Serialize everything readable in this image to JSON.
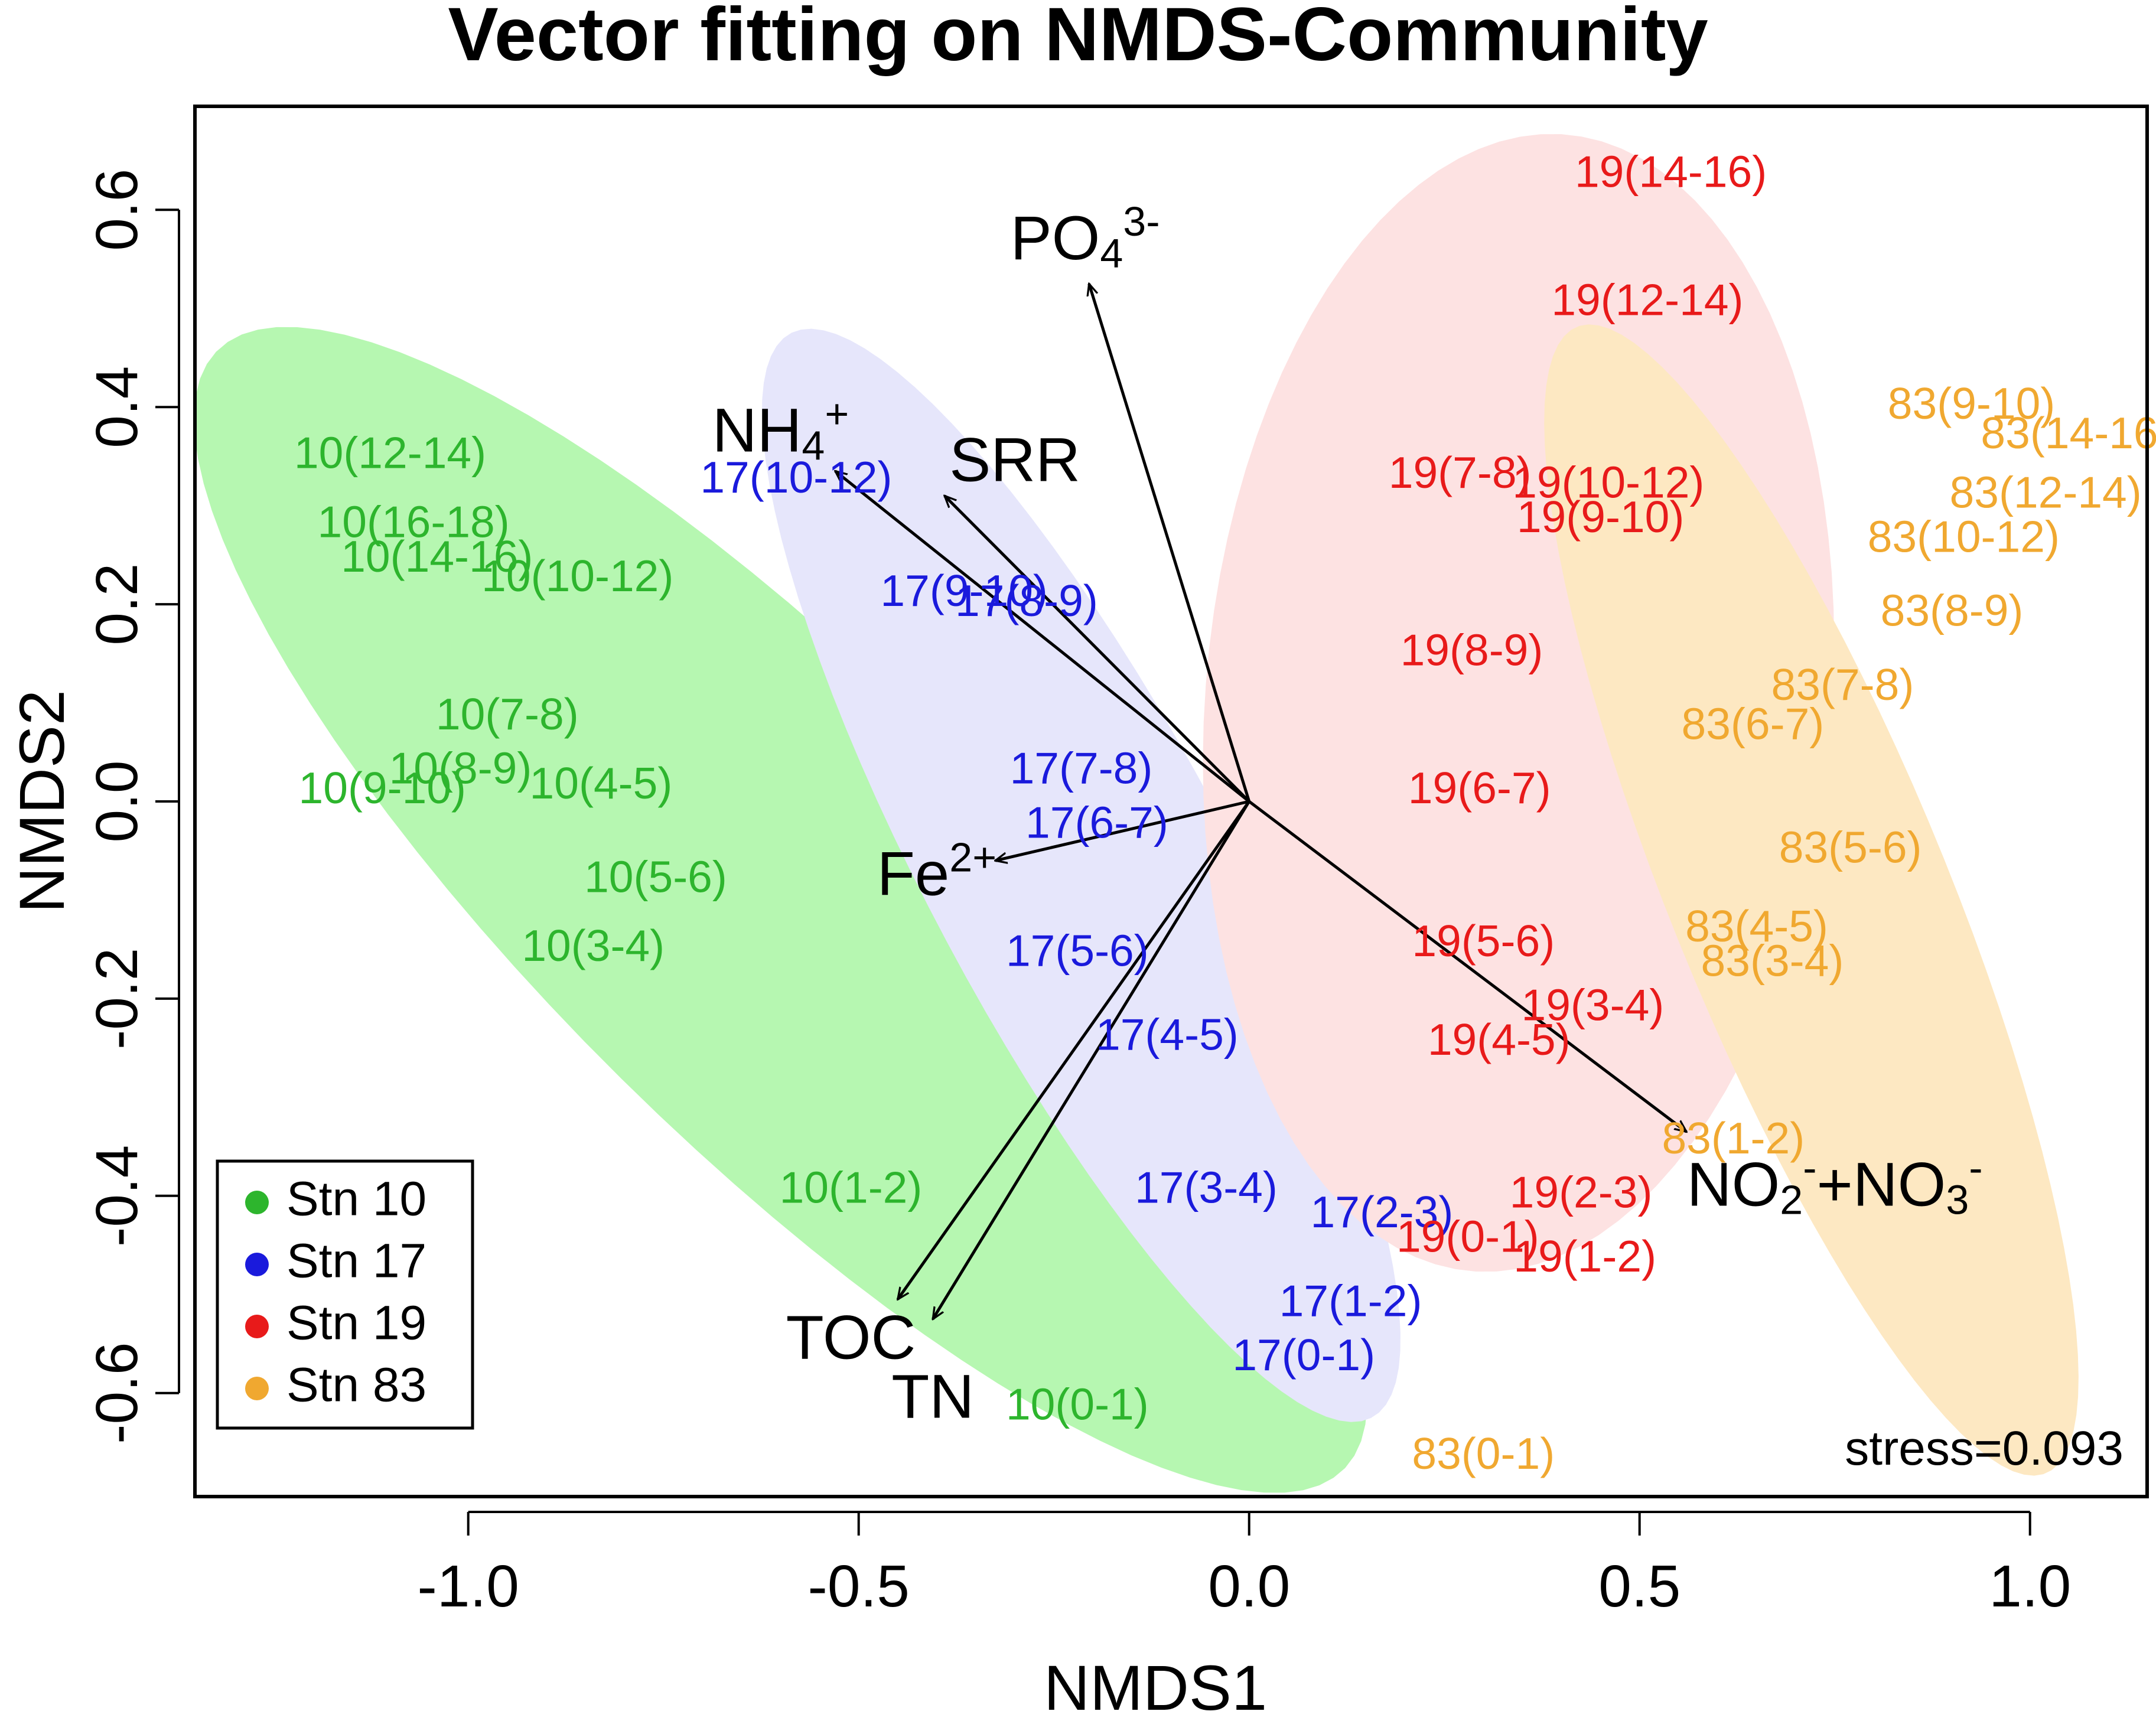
{
  "chart_data": {
    "type": "scatter",
    "title": "Vector fitting on NMDS-Community",
    "xlabel": "NMDS1",
    "ylabel": "NMDS2",
    "xlim": [
      -1.35,
      1.15
    ],
    "ylim": [
      -0.705,
      0.705
    ],
    "xticks": [
      -1.0,
      -0.5,
      0.0,
      0.5,
      1.0
    ],
    "xtick_labels": [
      "-1.0",
      "-0.5",
      "0.0",
      "0.5",
      "1.0"
    ],
    "yticks": [
      -0.6,
      -0.4,
      -0.2,
      0.0,
      0.2,
      0.4,
      0.6
    ],
    "ytick_labels": [
      "-0.6",
      "-0.4",
      "-0.2",
      "0.0",
      "0.2",
      "0.4",
      "0.6"
    ],
    "annotation": "stress=0.093",
    "legend_position": "bottom-left",
    "groups": [
      {
        "name": "Stn 10",
        "color": "#2db52d",
        "fill": "#b6f7b1",
        "ellipse": {
          "cx": -0.6,
          "cy": -0.11,
          "rx": 0.92,
          "ry": 0.26,
          "angle_deg": 143
        },
        "points": [
          {
            "label": "10(12-14)",
            "x": -1.1,
            "y": 0.35
          },
          {
            "label": "10(16-18)",
            "x": -1.07,
            "y": 0.28
          },
          {
            "label": "10(14-16)",
            "x": -1.04,
            "y": 0.245
          },
          {
            "label": "10(10-12)",
            "x": -0.86,
            "y": 0.225
          },
          {
            "label": "10(7-8)",
            "x": -0.95,
            "y": 0.085
          },
          {
            "label": "10(8-9)",
            "x": -1.01,
            "y": 0.03
          },
          {
            "label": "10(9-10)",
            "x": -1.11,
            "y": 0.01
          },
          {
            "label": "10(4-5)",
            "x": -0.83,
            "y": 0.015
          },
          {
            "label": "10(5-6)",
            "x": -0.76,
            "y": -0.08
          },
          {
            "label": "10(3-4)",
            "x": -0.84,
            "y": -0.15
          },
          {
            "label": "10(1-2)",
            "x": -0.51,
            "y": -0.395
          },
          {
            "label": "10(0-1)",
            "x": -0.22,
            "y": -0.615
          }
        ]
      },
      {
        "name": "Stn 17",
        "color": "#1a1adc",
        "fill": "#e6e6fb",
        "ellipse": {
          "cx": -0.215,
          "cy": -0.075,
          "rx": 0.665,
          "ry": 0.18,
          "angle_deg": 125
        },
        "points": [
          {
            "label": "17(10-12)",
            "x": -0.58,
            "y": 0.325
          },
          {
            "label": "17(9-10)",
            "x": -0.365,
            "y": 0.21
          },
          {
            "label": "17(8-9)",
            "x": -0.285,
            "y": 0.2
          },
          {
            "label": "17(7-8)",
            "x": -0.215,
            "y": 0.03
          },
          {
            "label": "17(6-7)",
            "x": -0.195,
            "y": -0.025
          },
          {
            "label": "17(5-6)",
            "x": -0.22,
            "y": -0.155
          },
          {
            "label": "17(4-5)",
            "x": -0.105,
            "y": -0.24
          },
          {
            "label": "17(3-4)",
            "x": -0.055,
            "y": -0.395
          },
          {
            "label": "17(2-3)",
            "x": 0.17,
            "y": -0.42
          },
          {
            "label": "17(1-2)",
            "x": 0.13,
            "y": -0.51
          },
          {
            "label": "17(0-1)",
            "x": 0.07,
            "y": -0.565
          }
        ]
      },
      {
        "name": "Stn 19",
        "color": "#e81a1a",
        "fill": "#fde2e2",
        "ellipse": {
          "cx": 0.345,
          "cy": 0.1,
          "rx": 0.58,
          "ry": 0.4,
          "angle_deg": 82
        },
        "points": [
          {
            "label": "19(14-16)",
            "x": 0.54,
            "y": 0.635
          },
          {
            "label": "19(12-14)",
            "x": 0.51,
            "y": 0.505
          },
          {
            "label": "19(7-8)",
            "x": 0.27,
            "y": 0.33
          },
          {
            "label": "19(10-12)",
            "x": 0.46,
            "y": 0.32
          },
          {
            "label": "19(9-10)",
            "x": 0.45,
            "y": 0.285
          },
          {
            "label": "19(8-9)",
            "x": 0.285,
            "y": 0.15
          },
          {
            "label": "19(6-7)",
            "x": 0.295,
            "y": 0.01
          },
          {
            "label": "19(5-6)",
            "x": 0.3,
            "y": -0.145
          },
          {
            "label": "19(3-4)",
            "x": 0.44,
            "y": -0.21
          },
          {
            "label": "19(4-5)",
            "x": 0.32,
            "y": -0.245
          },
          {
            "label": "19(2-3)",
            "x": 0.425,
            "y": -0.4
          },
          {
            "label": "19(0-1)",
            "x": 0.28,
            "y": -0.445
          },
          {
            "label": "19(1-2)",
            "x": 0.43,
            "y": -0.465
          }
        ]
      },
      {
        "name": "Stn 83",
        "color": "#f0a830",
        "fill": "#fde8c2",
        "ellipse": {
          "cx": 0.72,
          "cy": -0.1,
          "rx": 0.655,
          "ry": 0.17,
          "angle_deg": 118
        },
        "points": [
          {
            "label": "83(9-10)",
            "x": 0.925,
            "y": 0.4
          },
          {
            "label": "83(14-16)",
            "x": 1.06,
            "y": 0.37
          },
          {
            "label": "83(12-14)",
            "x": 1.02,
            "y": 0.31
          },
          {
            "label": "83(10-12)",
            "x": 0.915,
            "y": 0.265
          },
          {
            "label": "83(8-9)",
            "x": 0.9,
            "y": 0.19
          },
          {
            "label": "83(7-8)",
            "x": 0.76,
            "y": 0.115
          },
          {
            "label": "83(6-7)",
            "x": 0.645,
            "y": 0.075
          },
          {
            "label": "83(5-6)",
            "x": 0.77,
            "y": -0.05
          },
          {
            "label": "83(4-5)",
            "x": 0.65,
            "y": -0.13
          },
          {
            "label": "83(3-4)",
            "x": 0.67,
            "y": -0.165
          },
          {
            "label": "83(1-2)",
            "x": 0.62,
            "y": -0.345
          },
          {
            "label": "83(0-1)",
            "x": 0.3,
            "y": -0.665
          }
        ]
      }
    ],
    "vectors": [
      {
        "name": "PO4 3-",
        "base": "PO",
        "sub": "4",
        "sup": "3-",
        "x": -0.205,
        "y": 0.525,
        "lx": -0.21,
        "ly": 0.55
      },
      {
        "name": "NH4 +",
        "base": "NH",
        "sub": "4",
        "sup": "+",
        "x": -0.53,
        "y": 0.335,
        "lx": -0.6,
        "ly": 0.355
      },
      {
        "name": "SRR",
        "base": "SRR",
        "sub": "",
        "sup": "",
        "x": -0.39,
        "y": 0.31,
        "lx": -0.3,
        "ly": 0.325
      },
      {
        "name": "Fe 2+",
        "base": "Fe",
        "sub": "",
        "sup": "2+",
        "x": -0.325,
        "y": -0.06,
        "lx": -0.4,
        "ly": -0.095
      },
      {
        "name": "TOC",
        "base": "TOC",
        "sub": "",
        "sup": "",
        "x": -0.45,
        "y": -0.505,
        "lx": -0.51,
        "ly": -0.565
      },
      {
        "name": "TN",
        "base": "TN",
        "sub": "",
        "sup": "",
        "x": -0.405,
        "y": -0.525,
        "lx": -0.405,
        "ly": -0.625
      },
      {
        "name": "NO2 - + NO3 -",
        "base": "NO",
        "sub": "2",
        "sup": "-",
        "base2": "+NO",
        "sub2": "3",
        "sup2": "-",
        "x": 0.56,
        "y": -0.335,
        "lx": 0.75,
        "ly": -0.41
      }
    ]
  }
}
